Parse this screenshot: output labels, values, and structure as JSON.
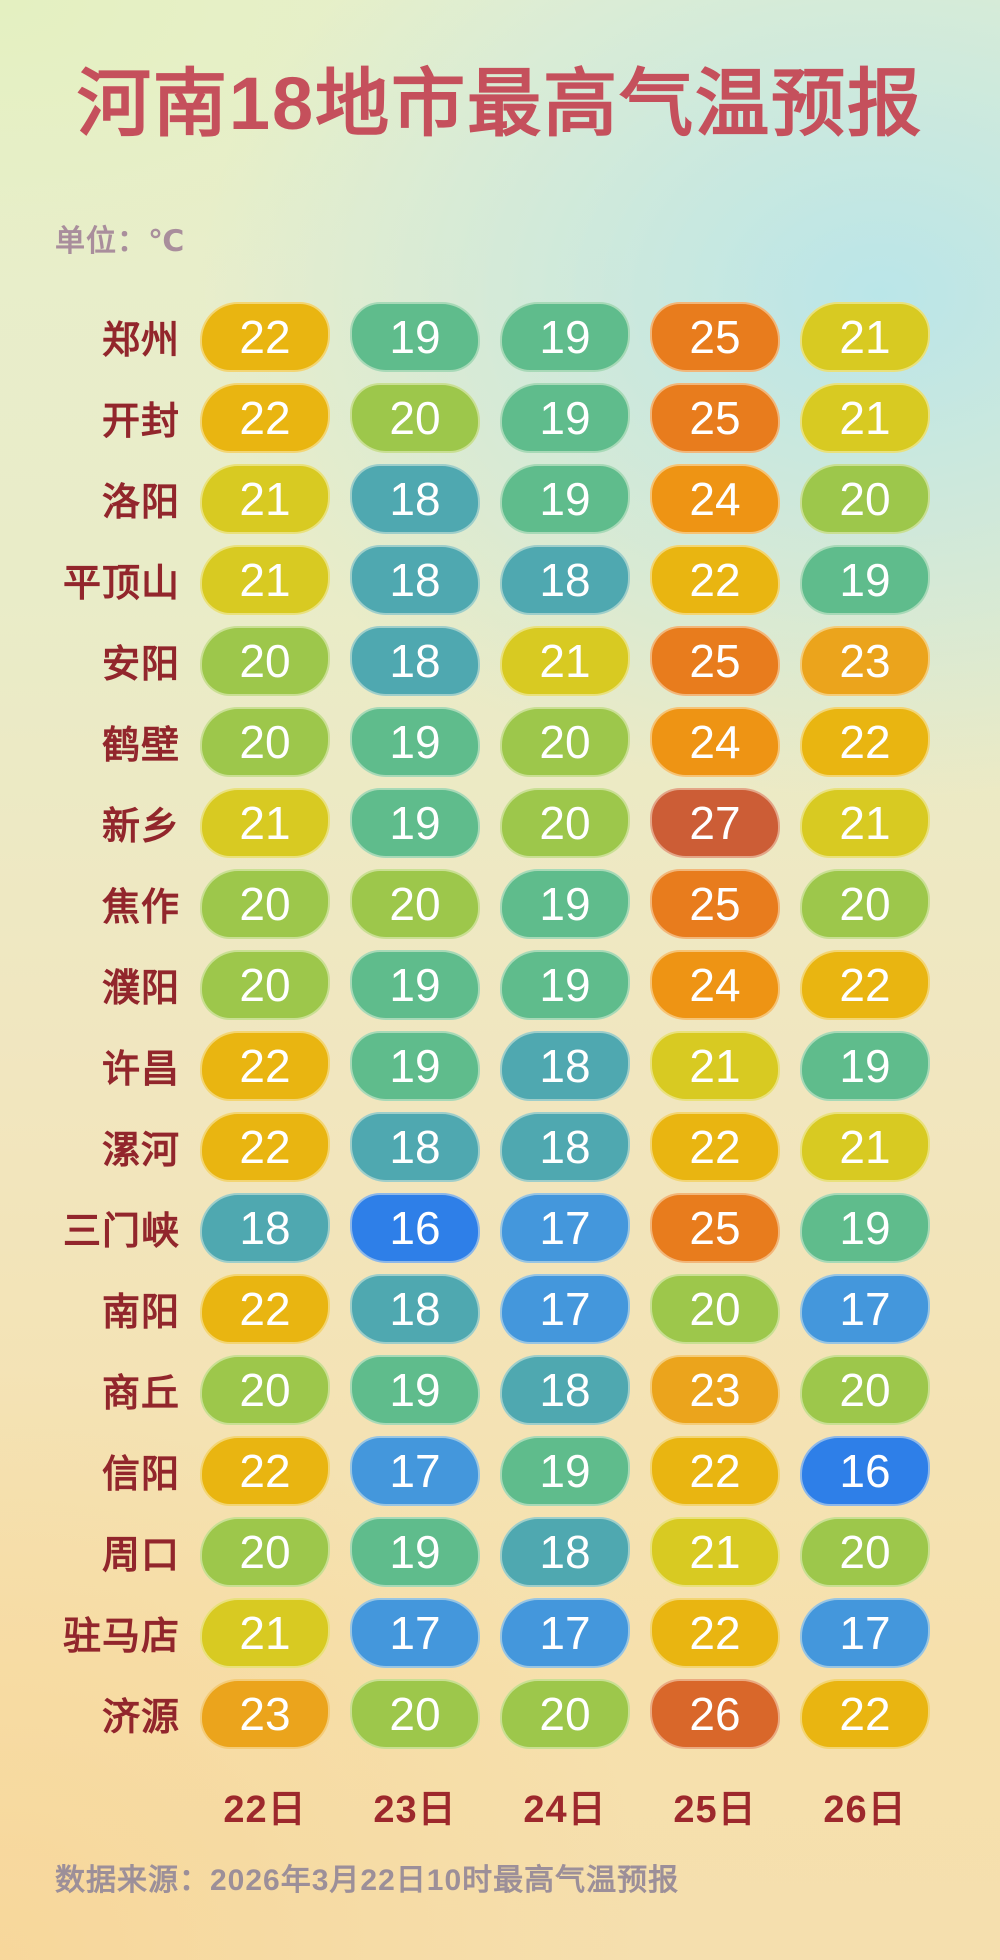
{
  "header": {
    "title": "河南18地市最高气温预报",
    "unit_label": "单位：℃"
  },
  "footer": {
    "source": "数据来源：2026年3月22日10时最高气温预报"
  },
  "chart_data": {
    "type": "heatmap",
    "title": "河南18地市最高气温预报",
    "unit": "℃",
    "columns": [
      "22日",
      "23日",
      "24日",
      "25日",
      "26日"
    ],
    "rows": [
      {
        "city": "郑州",
        "temps": [
          22,
          19,
          19,
          25,
          21
        ]
      },
      {
        "city": "开封",
        "temps": [
          22,
          20,
          19,
          25,
          21
        ]
      },
      {
        "city": "洛阳",
        "temps": [
          21,
          18,
          19,
          24,
          20
        ]
      },
      {
        "city": "平顶山",
        "temps": [
          21,
          18,
          18,
          22,
          19
        ]
      },
      {
        "city": "安阳",
        "temps": [
          20,
          18,
          21,
          25,
          23
        ]
      },
      {
        "city": "鹤壁",
        "temps": [
          20,
          19,
          20,
          24,
          22
        ]
      },
      {
        "city": "新乡",
        "temps": [
          21,
          19,
          20,
          27,
          21
        ]
      },
      {
        "city": "焦作",
        "temps": [
          20,
          20,
          19,
          25,
          20
        ]
      },
      {
        "city": "濮阳",
        "temps": [
          20,
          19,
          19,
          24,
          22
        ]
      },
      {
        "city": "许昌",
        "temps": [
          22,
          19,
          18,
          21,
          19
        ]
      },
      {
        "city": "漯河",
        "temps": [
          22,
          18,
          18,
          22,
          21
        ]
      },
      {
        "city": "三门峡",
        "temps": [
          18,
          16,
          17,
          25,
          19
        ]
      },
      {
        "city": "南阳",
        "temps": [
          22,
          18,
          17,
          20,
          17
        ]
      },
      {
        "city": "商丘",
        "temps": [
          20,
          19,
          18,
          23,
          20
        ]
      },
      {
        "city": "信阳",
        "temps": [
          22,
          17,
          19,
          22,
          16
        ]
      },
      {
        "city": "周口",
        "temps": [
          20,
          19,
          18,
          21,
          20
        ]
      },
      {
        "city": "驻马店",
        "temps": [
          21,
          17,
          17,
          22,
          17
        ]
      },
      {
        "city": "济源",
        "temps": [
          23,
          20,
          20,
          26,
          22
        ]
      }
    ],
    "temp_colors": {
      "16": "#2e7fe8",
      "17": "#4497dc",
      "18": "#4fa8b0",
      "19": "#5fbc8c",
      "20": "#9dc74b",
      "21": "#d8ca22",
      "22": "#e9b511",
      "23": "#eba41c",
      "24": "#ee9414",
      "25": "#e87c1d",
      "26": "#d9672a",
      "27": "#cc5d36"
    },
    "legend_position": "none",
    "source": "数据来源：2026年3月22日10时最高气温预报"
  },
  "theme": {
    "title_color": "#c5505c",
    "unit_color": "#a98e9c",
    "city_color": "#92262c",
    "date_color": "#9d282c",
    "source_color": "#9c8f99",
    "pill_text_color": "#ffffff"
  }
}
